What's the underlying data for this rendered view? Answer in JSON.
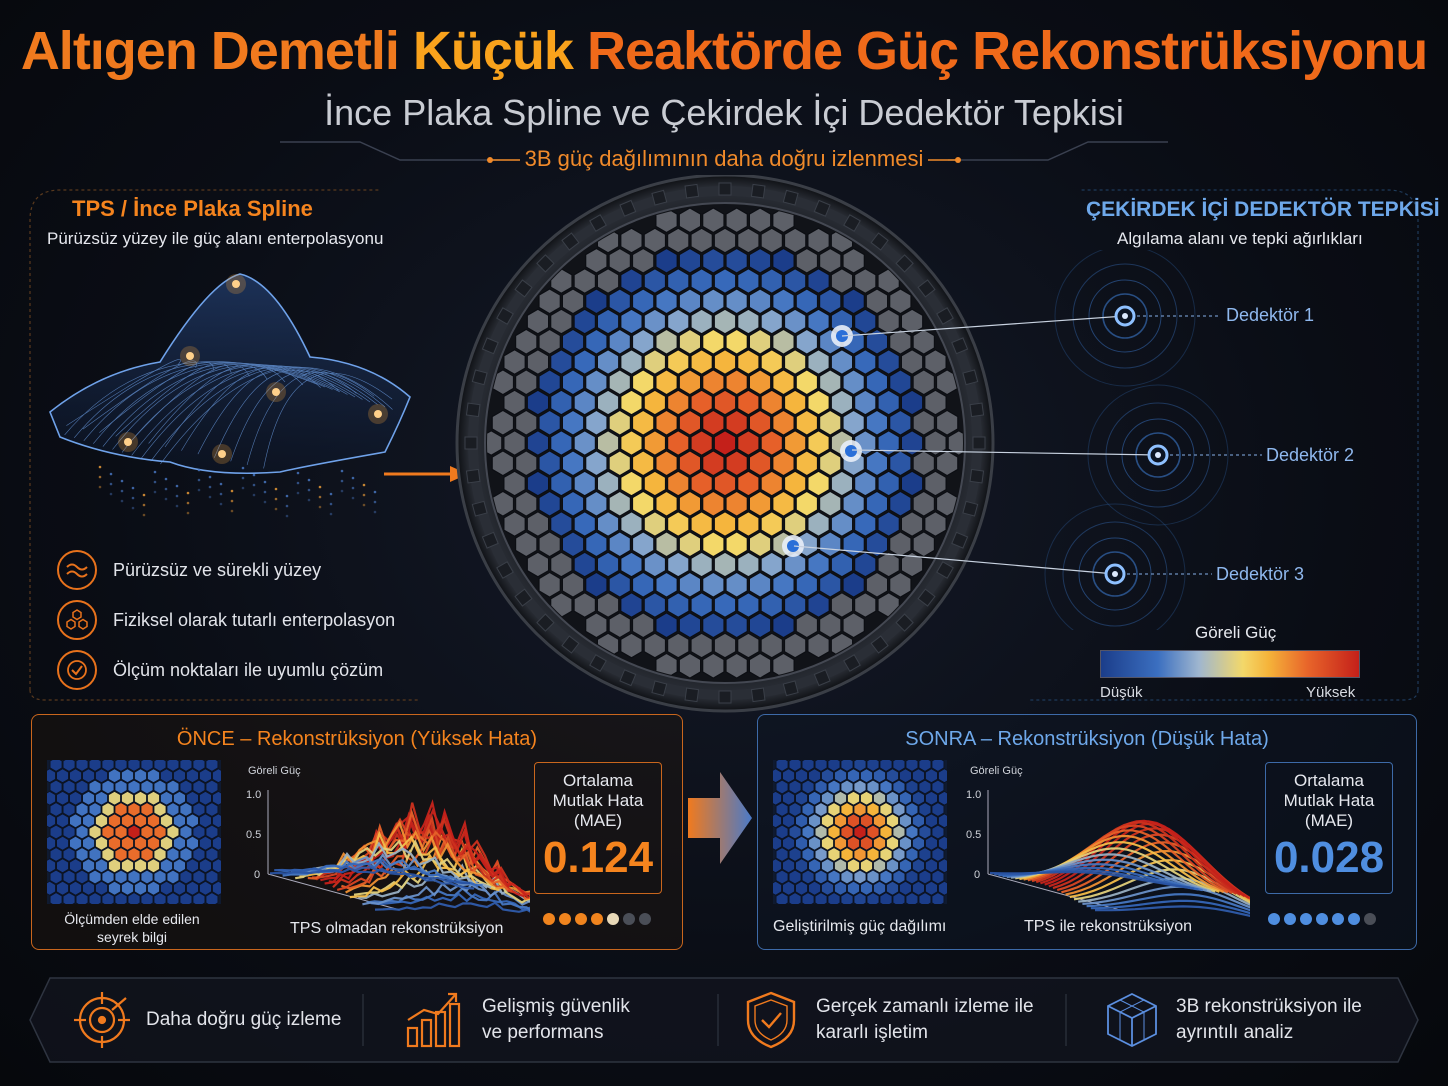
{
  "header": {
    "title_part1": "Altıgen Demetli",
    "title_part2": "Küçük",
    "title_part3": "Reaktörde Güç Rekonstrüksiyonu",
    "subtitle": "İnce Plaka Spline ve Çekirdek İçi Dedektör Tepkisi",
    "tagline": "3B güç dağılımının daha doğru izlenmesi"
  },
  "tps_panel": {
    "title": "TPS / İnce Plaka Spline",
    "desc": "Pürüzsüz yüzey ile güç alanı enterpolasyonu",
    "features": [
      {
        "icon": "wave-icon",
        "label": "Pürüzsüz ve sürekli yüzey"
      },
      {
        "icon": "hexagon-cluster-icon",
        "label": "Fiziksel olarak tutarlı enterpolasyon"
      },
      {
        "icon": "check-circle-icon",
        "label": "Ölçüm noktaları ile uyumlu çözüm"
      }
    ]
  },
  "detector_panel": {
    "title": "ÇEKİRDEK İÇİ DEDEKTÖR TEPKİSİ",
    "desc": "Algılama alanı ve tepki ağırlıkları",
    "detectors": [
      "Dedektör 1",
      "Dedektör 2",
      "Dedektör 3"
    ],
    "legend_title": "Göreli Güç",
    "legend_low": "Düşük",
    "legend_high": "Yüksek"
  },
  "before": {
    "title": "ÖNCE – Rekonstrüksiyon (Yüksek Hata)",
    "map_caption_1": "Ölçümden elde edilen",
    "map_caption_2": "seyrek bilgi",
    "plot_ylabel": "Göreli Güç",
    "ticks": [
      "1.0",
      "0.5",
      "0"
    ],
    "plot_caption": "TPS olmadan rekonstrüksiyon",
    "mae_label_1": "Ortalama",
    "mae_label_2": "Mutlak Hata",
    "mae_label_3": "(MAE)",
    "mae_value": "0.124",
    "rating_filled": 4,
    "rating_total": 7
  },
  "after": {
    "title": "SONRA – Rekonstrüksiyon (Düşük Hata)",
    "map_caption": "Geliştirilmiş güç dağılımı",
    "plot_ylabel": "Göreli Güç",
    "ticks": [
      "1.0",
      "0.5",
      "0"
    ],
    "plot_caption": "TPS ile rekonstrüksiyon",
    "mae_label_1": "Ortalama",
    "mae_label_2": "Mutlak Hata",
    "mae_label_3": "(MAE)",
    "mae_value": "0.028",
    "rating_filled": 6,
    "rating_total": 7
  },
  "benefits": [
    {
      "icon": "target-icon",
      "line1": "Daha doğru güç izleme",
      "line2": ""
    },
    {
      "icon": "bar-chart-icon",
      "line1": "Gelişmiş güvenlik",
      "line2": "ve performans"
    },
    {
      "icon": "shield-check-icon",
      "line1": "Gerçek zamanlı izleme ile",
      "line2": "kararlı işletim"
    },
    {
      "icon": "cube-icon",
      "line1": "3B rekonstrüksiyon ile",
      "line2": "ayrıntılı analiz"
    }
  ],
  "colors": {
    "accent_orange": "#f5841e",
    "accent_blue": "#4f8ee0"
  }
}
